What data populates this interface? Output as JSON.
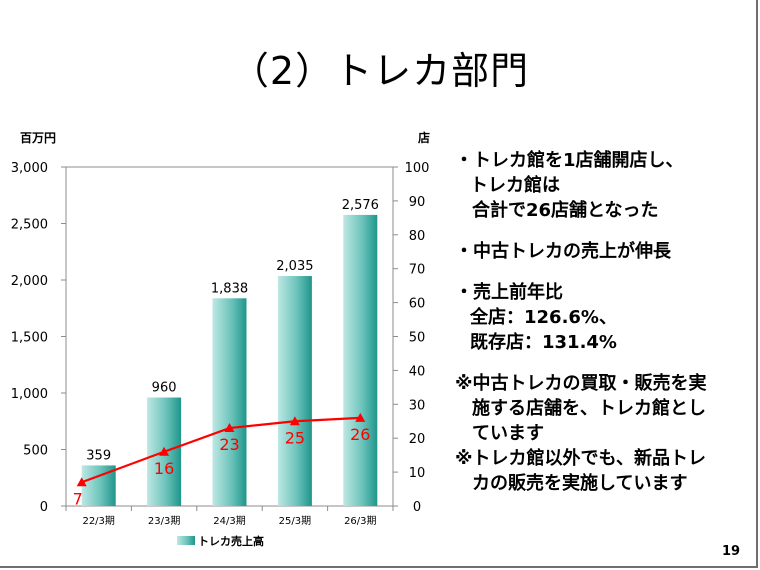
{
  "slide": {
    "title": "（2）トレカ部門",
    "page_number": "19"
  },
  "bullets": [
    {
      "lines": [
        "・トレカ館を1店舗開店し、",
        "トレカ館は",
        "合計で26店舗となった"
      ]
    },
    {
      "lines": [
        "・中古トレカの売上が伸長"
      ]
    },
    {
      "lines": [
        "・売上前年比",
        "全店：126.6%、",
        "既存店：131.4%"
      ]
    },
    {
      "lines": [
        "※中古トレカの買取・販売を実",
        "施する店舗を、トレカ館とし",
        "ています"
      ]
    },
    {
      "lines": [
        "※トレカ館以外でも、新品トレ",
        "カの販売を実施しています"
      ]
    }
  ],
  "chart_data": {
    "type": "bar",
    "categories": [
      "22/3期",
      "23/3期",
      "24/3期",
      "25/3期",
      "26/3期"
    ],
    "series": [
      {
        "name": "トレカ売上高",
        "type": "bar",
        "axis": "left",
        "values": [
          359,
          960,
          1838,
          2035,
          2576
        ],
        "labels": [
          "359",
          "960",
          "1,838",
          "2,035",
          "2,576"
        ],
        "color": "#3aa9a0"
      },
      {
        "type": "line",
        "axis": "right",
        "values": [
          7,
          16,
          23,
          25,
          26
        ],
        "labels": [
          "7",
          "16",
          "23",
          "25",
          "26"
        ],
        "color": "#ff0000"
      }
    ],
    "left_axis": {
      "unit_label": "百万円",
      "ylim": [
        0,
        3000
      ],
      "ticks": [
        "0",
        "500",
        "1,000",
        "1,500",
        "2,000",
        "2,500",
        "3,000"
      ]
    },
    "right_axis": {
      "unit_label": "店",
      "ylim": [
        0,
        100
      ],
      "ticks": [
        "0",
        "10",
        "20",
        "30",
        "40",
        "50",
        "60",
        "70",
        "80",
        "90",
        "100"
      ]
    },
    "legend_position": "bottom",
    "grid": false
  }
}
